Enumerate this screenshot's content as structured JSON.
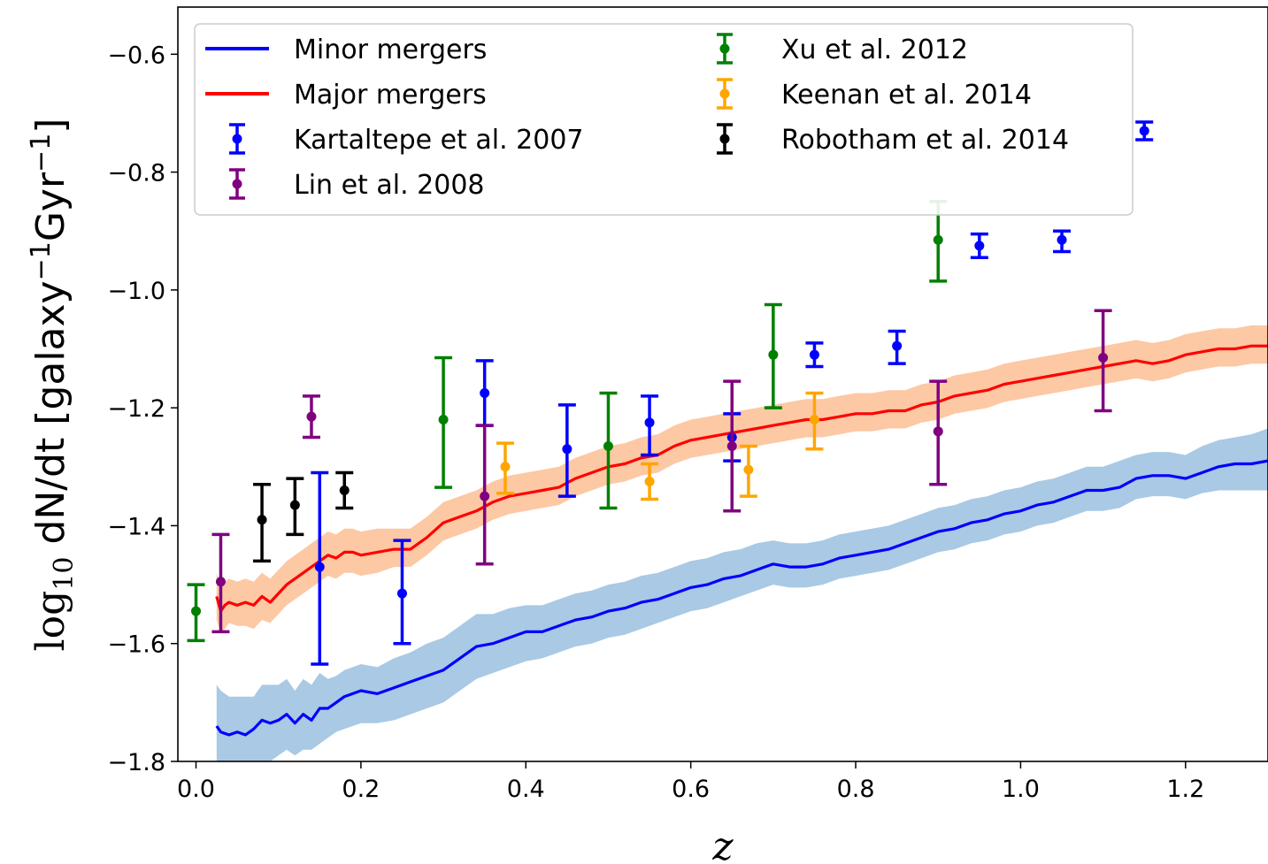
{
  "chart_data": {
    "type": "line",
    "xlabel": "z",
    "ylabel": {
      "prefix": "log",
      "sub": "10",
      "main": " dN/dt [galaxy",
      "sup1": "−1",
      "mid": "Gyr",
      "sup2": "−1",
      "end": "]"
    },
    "xlim": [
      -0.022,
      1.3
    ],
    "ylim": [
      -1.8,
      -0.52
    ],
    "xticks": [
      0.0,
      0.2,
      0.4,
      0.6,
      0.8,
      1.0,
      1.2
    ],
    "xtick_labels": [
      "0.0",
      "0.2",
      "0.4",
      "0.6",
      "0.8",
      "1.0",
      "1.2"
    ],
    "yticks": [
      -1.8,
      -1.6,
      -1.4,
      -1.2,
      -1.0,
      -0.8,
      -0.6
    ],
    "ytick_labels": [
      "−1.8",
      "−1.6",
      "−1.4",
      "−1.2",
      "−1.0",
      "−0.8",
      "−0.6"
    ],
    "grid": false,
    "legend_position": "top-left",
    "lines": [
      {
        "name": "Minor mergers",
        "color": "#0000ff",
        "band_color": "#a9c9e4",
        "x": [
          0.025,
          0.03,
          0.04,
          0.05,
          0.06,
          0.07,
          0.08,
          0.09,
          0.1,
          0.11,
          0.12,
          0.13,
          0.14,
          0.15,
          0.16,
          0.17,
          0.18,
          0.19,
          0.2,
          0.22,
          0.24,
          0.26,
          0.28,
          0.3,
          0.32,
          0.34,
          0.36,
          0.38,
          0.4,
          0.42,
          0.44,
          0.46,
          0.48,
          0.5,
          0.52,
          0.54,
          0.56,
          0.58,
          0.6,
          0.62,
          0.64,
          0.66,
          0.68,
          0.7,
          0.72,
          0.74,
          0.76,
          0.78,
          0.8,
          0.82,
          0.84,
          0.86,
          0.88,
          0.9,
          0.92,
          0.94,
          0.96,
          0.98,
          1.0,
          1.02,
          1.04,
          1.06,
          1.08,
          1.1,
          1.12,
          1.14,
          1.16,
          1.18,
          1.2,
          1.22,
          1.24,
          1.26,
          1.28,
          1.3
        ],
        "y": [
          -1.74,
          -1.75,
          -1.755,
          -1.75,
          -1.755,
          -1.745,
          -1.73,
          -1.735,
          -1.73,
          -1.72,
          -1.735,
          -1.72,
          -1.73,
          -1.71,
          -1.71,
          -1.7,
          -1.69,
          -1.685,
          -1.68,
          -1.685,
          -1.675,
          -1.665,
          -1.655,
          -1.645,
          -1.625,
          -1.605,
          -1.6,
          -1.59,
          -1.58,
          -1.58,
          -1.57,
          -1.56,
          -1.555,
          -1.545,
          -1.54,
          -1.53,
          -1.525,
          -1.515,
          -1.505,
          -1.5,
          -1.49,
          -1.485,
          -1.475,
          -1.465,
          -1.47,
          -1.47,
          -1.465,
          -1.455,
          -1.45,
          -1.445,
          -1.44,
          -1.43,
          -1.42,
          -1.41,
          -1.405,
          -1.395,
          -1.39,
          -1.38,
          -1.375,
          -1.365,
          -1.36,
          -1.35,
          -1.34,
          -1.34,
          -1.335,
          -1.32,
          -1.315,
          -1.315,
          -1.32,
          -1.31,
          -1.3,
          -1.295,
          -1.295,
          -1.29
        ],
        "y_lo": [
          -1.82,
          -1.83,
          -1.83,
          -1.83,
          -1.82,
          -1.81,
          -1.8,
          -1.8,
          -1.79,
          -1.78,
          -1.79,
          -1.78,
          -1.78,
          -1.77,
          -1.76,
          -1.75,
          -1.745,
          -1.74,
          -1.735,
          -1.735,
          -1.73,
          -1.72,
          -1.71,
          -1.7,
          -1.68,
          -1.66,
          -1.65,
          -1.64,
          -1.63,
          -1.625,
          -1.615,
          -1.605,
          -1.6,
          -1.59,
          -1.585,
          -1.575,
          -1.565,
          -1.555,
          -1.545,
          -1.54,
          -1.53,
          -1.52,
          -1.51,
          -1.5,
          -1.505,
          -1.505,
          -1.5,
          -1.49,
          -1.485,
          -1.48,
          -1.475,
          -1.465,
          -1.455,
          -1.445,
          -1.44,
          -1.43,
          -1.425,
          -1.415,
          -1.41,
          -1.4,
          -1.395,
          -1.385,
          -1.375,
          -1.375,
          -1.37,
          -1.355,
          -1.35,
          -1.35,
          -1.355,
          -1.345,
          -1.34,
          -1.34,
          -1.34,
          -1.34
        ],
        "y_hi": [
          -1.67,
          -1.68,
          -1.69,
          -1.69,
          -1.69,
          -1.69,
          -1.67,
          -1.67,
          -1.67,
          -1.66,
          -1.68,
          -1.66,
          -1.67,
          -1.65,
          -1.66,
          -1.655,
          -1.645,
          -1.64,
          -1.635,
          -1.64,
          -1.625,
          -1.615,
          -1.6,
          -1.59,
          -1.57,
          -1.55,
          -1.55,
          -1.54,
          -1.535,
          -1.535,
          -1.525,
          -1.515,
          -1.51,
          -1.5,
          -1.495,
          -1.485,
          -1.48,
          -1.47,
          -1.46,
          -1.455,
          -1.445,
          -1.44,
          -1.43,
          -1.425,
          -1.43,
          -1.43,
          -1.425,
          -1.415,
          -1.41,
          -1.405,
          -1.4,
          -1.39,
          -1.38,
          -1.37,
          -1.365,
          -1.355,
          -1.35,
          -1.34,
          -1.335,
          -1.325,
          -1.32,
          -1.31,
          -1.3,
          -1.3,
          -1.29,
          -1.28,
          -1.275,
          -1.275,
          -1.28,
          -1.265,
          -1.255,
          -1.25,
          -1.245,
          -1.235
        ]
      },
      {
        "name": "Major mergers",
        "color": "#ff0000",
        "band_color": "#fdc8a4",
        "x": [
          0.025,
          0.03,
          0.035,
          0.04,
          0.05,
          0.06,
          0.07,
          0.08,
          0.09,
          0.1,
          0.11,
          0.12,
          0.13,
          0.14,
          0.15,
          0.16,
          0.17,
          0.18,
          0.19,
          0.2,
          0.22,
          0.24,
          0.26,
          0.28,
          0.3,
          0.32,
          0.34,
          0.36,
          0.38,
          0.4,
          0.42,
          0.44,
          0.46,
          0.48,
          0.5,
          0.52,
          0.54,
          0.56,
          0.58,
          0.6,
          0.62,
          0.64,
          0.66,
          0.68,
          0.7,
          0.72,
          0.74,
          0.76,
          0.78,
          0.8,
          0.82,
          0.84,
          0.86,
          0.88,
          0.9,
          0.92,
          0.94,
          0.96,
          0.98,
          1.0,
          1.02,
          1.04,
          1.06,
          1.08,
          1.1,
          1.12,
          1.14,
          1.16,
          1.18,
          1.2,
          1.22,
          1.24,
          1.26,
          1.28,
          1.3
        ],
        "y": [
          -1.52,
          -1.545,
          -1.535,
          -1.53,
          -1.535,
          -1.53,
          -1.535,
          -1.52,
          -1.53,
          -1.515,
          -1.5,
          -1.49,
          -1.48,
          -1.47,
          -1.46,
          -1.45,
          -1.455,
          -1.445,
          -1.445,
          -1.45,
          -1.445,
          -1.44,
          -1.44,
          -1.42,
          -1.395,
          -1.385,
          -1.375,
          -1.36,
          -1.35,
          -1.345,
          -1.34,
          -1.335,
          -1.32,
          -1.31,
          -1.3,
          -1.295,
          -1.285,
          -1.28,
          -1.265,
          -1.255,
          -1.25,
          -1.245,
          -1.24,
          -1.235,
          -1.23,
          -1.225,
          -1.22,
          -1.22,
          -1.215,
          -1.21,
          -1.21,
          -1.205,
          -1.205,
          -1.195,
          -1.19,
          -1.18,
          -1.175,
          -1.17,
          -1.16,
          -1.155,
          -1.15,
          -1.145,
          -1.14,
          -1.135,
          -1.13,
          -1.125,
          -1.12,
          -1.125,
          -1.12,
          -1.11,
          -1.105,
          -1.1,
          -1.1,
          -1.095,
          -1.095
        ],
        "y_lo": [
          -1.56,
          -1.58,
          -1.575,
          -1.565,
          -1.57,
          -1.57,
          -1.575,
          -1.56,
          -1.565,
          -1.55,
          -1.535,
          -1.525,
          -1.515,
          -1.505,
          -1.495,
          -1.485,
          -1.49,
          -1.48,
          -1.48,
          -1.485,
          -1.48,
          -1.47,
          -1.47,
          -1.45,
          -1.425,
          -1.415,
          -1.405,
          -1.39,
          -1.38,
          -1.375,
          -1.37,
          -1.365,
          -1.35,
          -1.34,
          -1.33,
          -1.325,
          -1.315,
          -1.31,
          -1.295,
          -1.285,
          -1.28,
          -1.275,
          -1.27,
          -1.265,
          -1.26,
          -1.255,
          -1.25,
          -1.25,
          -1.245,
          -1.24,
          -1.24,
          -1.235,
          -1.235,
          -1.225,
          -1.22,
          -1.21,
          -1.205,
          -1.2,
          -1.19,
          -1.185,
          -1.18,
          -1.175,
          -1.17,
          -1.165,
          -1.16,
          -1.155,
          -1.15,
          -1.155,
          -1.15,
          -1.14,
          -1.135,
          -1.13,
          -1.13,
          -1.125,
          -1.125
        ],
        "y_hi": [
          -1.48,
          -1.505,
          -1.495,
          -1.49,
          -1.495,
          -1.49,
          -1.495,
          -1.48,
          -1.49,
          -1.475,
          -1.46,
          -1.45,
          -1.44,
          -1.43,
          -1.42,
          -1.41,
          -1.415,
          -1.405,
          -1.405,
          -1.41,
          -1.405,
          -1.405,
          -1.405,
          -1.385,
          -1.36,
          -1.35,
          -1.34,
          -1.325,
          -1.315,
          -1.31,
          -1.305,
          -1.3,
          -1.285,
          -1.275,
          -1.265,
          -1.26,
          -1.25,
          -1.245,
          -1.23,
          -1.22,
          -1.215,
          -1.21,
          -1.205,
          -1.2,
          -1.195,
          -1.19,
          -1.185,
          -1.185,
          -1.18,
          -1.175,
          -1.175,
          -1.17,
          -1.17,
          -1.16,
          -1.155,
          -1.145,
          -1.14,
          -1.135,
          -1.125,
          -1.12,
          -1.115,
          -1.11,
          -1.105,
          -1.1,
          -1.095,
          -1.09,
          -1.085,
          -1.09,
          -1.085,
          -1.075,
          -1.07,
          -1.065,
          -1.065,
          -1.06,
          -1.06
        ]
      }
    ],
    "errorbar_series": [
      {
        "name": "Kartaltepe et al. 2007",
        "color": "#0000ff",
        "points": [
          {
            "x": 0.15,
            "y": -1.47,
            "lo": -1.635,
            "hi": -1.31
          },
          {
            "x": 0.25,
            "y": -1.515,
            "lo": -1.6,
            "hi": -1.425
          },
          {
            "x": 0.35,
            "y": -1.175,
            "lo": -1.23,
            "hi": -1.12
          },
          {
            "x": 0.45,
            "y": -1.27,
            "lo": -1.35,
            "hi": -1.195
          },
          {
            "x": 0.55,
            "y": -1.225,
            "lo": -1.28,
            "hi": -1.18
          },
          {
            "x": 0.65,
            "y": -1.25,
            "lo": -1.29,
            "hi": -1.21
          },
          {
            "x": 0.75,
            "y": -1.11,
            "lo": -1.13,
            "hi": -1.09
          },
          {
            "x": 0.85,
            "y": -1.095,
            "lo": -1.125,
            "hi": -1.07
          },
          {
            "x": 0.95,
            "y": -0.925,
            "lo": -0.945,
            "hi": -0.905
          },
          {
            "x": 1.05,
            "y": -0.915,
            "lo": -0.935,
            "hi": -0.9
          },
          {
            "x": 1.15,
            "y": -0.73,
            "lo": -0.745,
            "hi": -0.715
          }
        ]
      },
      {
        "name": "Lin et al. 2008",
        "color": "#800080",
        "points": [
          {
            "x": 0.03,
            "y": -1.495,
            "lo": -1.58,
            "hi": -1.415
          },
          {
            "x": 0.14,
            "y": -1.215,
            "lo": -1.25,
            "hi": -1.18
          },
          {
            "x": 0.35,
            "y": -1.35,
            "lo": -1.465,
            "hi": -1.23
          },
          {
            "x": 0.65,
            "y": -1.265,
            "lo": -1.375,
            "hi": -1.155
          },
          {
            "x": 0.9,
            "y": -1.24,
            "lo": -1.33,
            "hi": -1.155
          },
          {
            "x": 1.1,
            "y": -1.115,
            "lo": -1.205,
            "hi": -1.035
          }
        ]
      },
      {
        "name": "Xu et al. 2012",
        "color": "#008000",
        "points": [
          {
            "x": 0.0,
            "y": -1.545,
            "lo": -1.595,
            "hi": -1.5
          },
          {
            "x": 0.3,
            "y": -1.22,
            "lo": -1.335,
            "hi": -1.115
          },
          {
            "x": 0.5,
            "y": -1.265,
            "lo": -1.37,
            "hi": -1.175
          },
          {
            "x": 0.7,
            "y": -1.11,
            "lo": -1.2,
            "hi": -1.025
          },
          {
            "x": 0.9,
            "y": -0.915,
            "lo": -0.985,
            "hi": -0.85
          }
        ]
      },
      {
        "name": "Keenan et al. 2014",
        "color": "#ffa500",
        "points": [
          {
            "x": 0.375,
            "y": -1.3,
            "lo": -1.345,
            "hi": -1.26
          },
          {
            "x": 0.55,
            "y": -1.325,
            "lo": -1.355,
            "hi": -1.295
          },
          {
            "x": 0.67,
            "y": -1.305,
            "lo": -1.35,
            "hi": -1.265
          },
          {
            "x": 0.75,
            "y": -1.22,
            "lo": -1.27,
            "hi": -1.175
          }
        ]
      },
      {
        "name": "Robotham et al. 2014",
        "color": "#000000",
        "points": [
          {
            "x": 0.08,
            "y": -1.39,
            "lo": -1.46,
            "hi": -1.33
          },
          {
            "x": 0.12,
            "y": -1.365,
            "lo": -1.415,
            "hi": -1.32
          },
          {
            "x": 0.18,
            "y": -1.34,
            "lo": -1.37,
            "hi": -1.31
          }
        ]
      }
    ],
    "legend_entries": [
      {
        "label": "Minor mergers",
        "kind": "line",
        "color": "#0000ff"
      },
      {
        "label": "Major mergers",
        "kind": "line",
        "color": "#ff0000"
      },
      {
        "label": "Kartaltepe et al. 2007",
        "kind": "errorbar",
        "color": "#0000ff"
      },
      {
        "label": "Lin et al. 2008",
        "kind": "errorbar",
        "color": "#800080"
      },
      {
        "label": "Xu et al. 2012",
        "kind": "errorbar",
        "color": "#008000"
      },
      {
        "label": "Keenan et al. 2014",
        "kind": "errorbar",
        "color": "#ffa500"
      },
      {
        "label": "Robotham et al. 2014",
        "kind": "errorbar",
        "color": "#000000"
      }
    ]
  }
}
